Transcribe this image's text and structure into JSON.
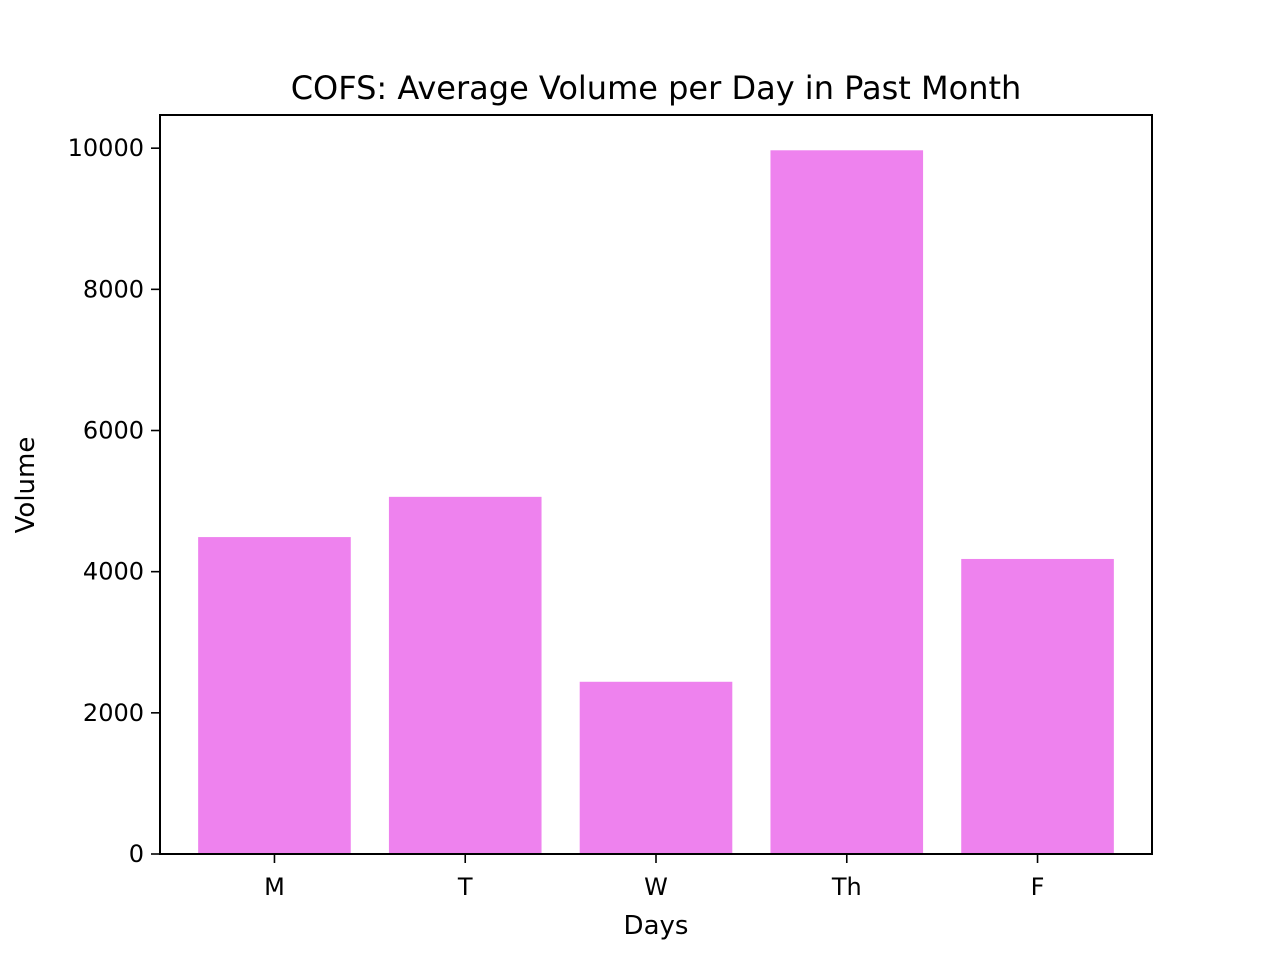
{
  "chart_data": {
    "type": "bar",
    "title": "COFS: Average Volume per Day in Past Month",
    "xlabel": "Days",
    "ylabel": "Volume",
    "categories": [
      "M",
      "T",
      "W",
      "Th",
      "F"
    ],
    "values": [
      4490,
      5060,
      2440,
      9970,
      4180
    ],
    "yticks": [
      0,
      2000,
      4000,
      6000,
      8000,
      10000
    ],
    "ylim": [
      0,
      10470
    ],
    "grid": false,
    "legend": "none",
    "bar_color": "#ee82ee"
  }
}
